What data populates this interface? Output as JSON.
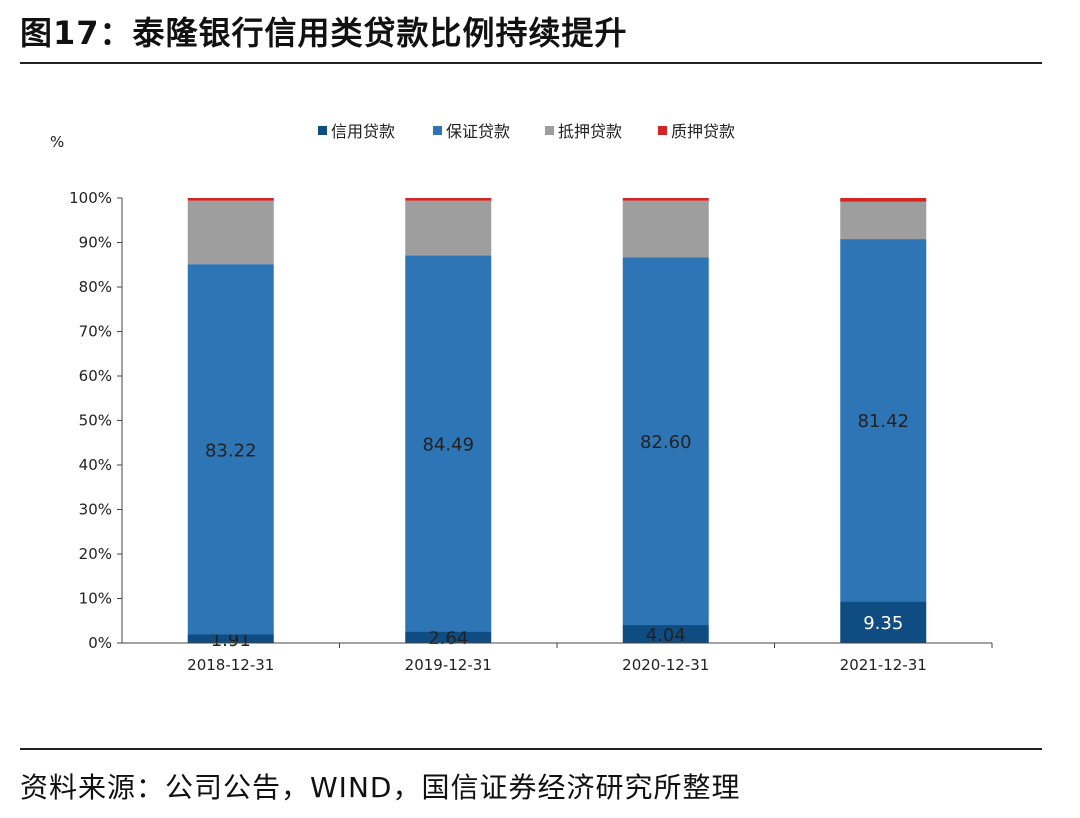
{
  "figure": {
    "title": "图17：泰隆银行信用类贷款比例持续提升",
    "source": "资料来源：公司公告，WIND，国信证券经济研究所整理"
  },
  "chart_data": {
    "type": "bar",
    "stacked": true,
    "title": "",
    "xlabel": "",
    "ylabel": "%",
    "ylim": [
      0,
      100
    ],
    "yticks": [
      "0%",
      "10%",
      "20%",
      "30%",
      "40%",
      "50%",
      "60%",
      "70%",
      "80%",
      "90%",
      "100%"
    ],
    "legend_position": "top",
    "categories": [
      "2018-12-31",
      "2019-12-31",
      "2020-12-31",
      "2021-12-31"
    ],
    "series": [
      {
        "name": "信用贷款",
        "color": "#0f4c81",
        "values": [
          1.91,
          2.64,
          4.04,
          9.35
        ],
        "labels": [
          "1.91",
          "2.64",
          "4.04",
          "9.35"
        ]
      },
      {
        "name": "保证贷款",
        "color": "#2e75b6",
        "values": [
          83.22,
          84.49,
          82.6,
          81.42
        ],
        "labels": [
          "83.22",
          "84.49",
          "82.60",
          "81.42"
        ]
      },
      {
        "name": "抵押贷款",
        "color": "#9e9e9e",
        "values": [
          14.27,
          12.27,
          12.76,
          8.38
        ]
      },
      {
        "name": "质押贷款",
        "color": "#d42424",
        "values": [
          0.6,
          0.6,
          0.6,
          0.85
        ]
      }
    ]
  }
}
